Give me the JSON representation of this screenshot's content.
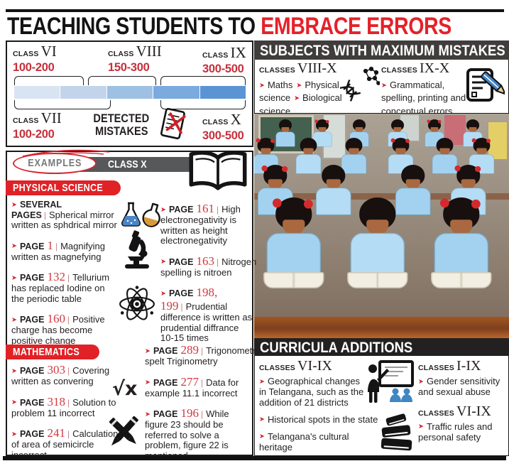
{
  "meta": {
    "bullet": "➤",
    "sep": "|",
    "sqrt": "√x"
  },
  "title": {
    "black": "TEACHING STUDENTS TO",
    "red": "EMBRACE ERRORS"
  },
  "detected_chart": {
    "caption_line1": "DETECTED",
    "caption_line2": "MISTAKES",
    "segment_colors": [
      "#d9e4f2",
      "#c2d4eb",
      "#9dc0e3",
      "#7aaade",
      "#5b94d4"
    ],
    "classes": [
      {
        "label": "CLASS",
        "numeral": "VI",
        "range": "100-200"
      },
      {
        "label": "CLASS",
        "numeral": "VIII",
        "range": "150-300"
      },
      {
        "label": "CLASS",
        "numeral": "IX",
        "range": "300-500"
      },
      {
        "label": "CLASS",
        "numeral": "VII",
        "range": "100-200"
      },
      {
        "label": "CLASS",
        "numeral": "X",
        "range": "300-500"
      }
    ]
  },
  "subjects": {
    "header": "SUBJECTS WITH MAXIMUM MISTAKES",
    "groups": [
      {
        "label": "CLASSES",
        "numeral": "VIII-X",
        "items": [
          {
            "text": "Maths"
          },
          {
            "text": "Physical science"
          },
          {
            "text": "Biological science"
          }
        ]
      },
      {
        "label": "CLASSES",
        "numeral": "IX-X",
        "items": [
          {
            "text": "Grammatical, spelling, printing and conceptual errors"
          }
        ]
      }
    ]
  },
  "examples": {
    "badge": "EXAMPLES",
    "class_banner": "CLASS X",
    "physical_science": {
      "title": "PHYSICAL SCIENCE",
      "left": [
        {
          "label": "SEVERAL PAGES",
          "num": "",
          "text": "Spherical mirror written as sphdrical mirror"
        },
        {
          "label": "PAGE",
          "num": "1",
          "text": "Magnifying written as magnefying"
        },
        {
          "label": "PAGE",
          "num": "132",
          "text": "Tellurium has replaced Iodine on the periodic table"
        },
        {
          "label": "PAGE",
          "num": "160",
          "text": "Positive charge has become positive change"
        }
      ],
      "right": [
        {
          "label": "PAGE",
          "num": "161",
          "text": "High electronegativity is written as height electronegativity"
        },
        {
          "label": "PAGE",
          "num": "163",
          "text": "Nitrogen spelling is nitroen"
        },
        {
          "label": "PAGE",
          "num": "198, 199",
          "text": "Prudential difference is written as prudential diffrance 10-15 times"
        }
      ]
    },
    "mathematics": {
      "title": "MATHEMATICS",
      "left": [
        {
          "label": "PAGE",
          "num": "303",
          "text": "Covering written as convering"
        },
        {
          "label": "PAGE",
          "num": "318",
          "text": "Solution to problem 11 incorrect"
        },
        {
          "label": "PAGE",
          "num": "241",
          "text": "Calculation of area of semicircle incorrect"
        }
      ],
      "right": [
        {
          "label": "PAGE",
          "num": "289",
          "text": "Trigonometry spelt Triginometry"
        },
        {
          "label": "PAGE",
          "num": "277",
          "text": "Data for example 11.1 incorrect"
        },
        {
          "label": "PAGE",
          "num": "196",
          "text": "While figure 23 should be referred to solve a problem, figure 22 is mentioned"
        }
      ]
    }
  },
  "curricula": {
    "header": "CURRICULA ADDITIONS",
    "col1": {
      "label": "CLASSES",
      "numeral": "VI-IX",
      "items": [
        {
          "text": "Geographical changes in Telangana, such as the addition of 21 districts"
        },
        {
          "text": "Historical spots in the state"
        },
        {
          "text": "Telangana's cultural heritage"
        }
      ]
    },
    "col2a": {
      "label": "CLASSES",
      "numeral": "I-IX",
      "items": [
        {
          "text": "Gender sensitivity and sexual abuse"
        }
      ]
    },
    "col2b": {
      "label": "CLASSES",
      "numeral": "VI-IX",
      "items": [
        {
          "text": "Traffic rules and personal safety"
        }
      ]
    }
  }
}
